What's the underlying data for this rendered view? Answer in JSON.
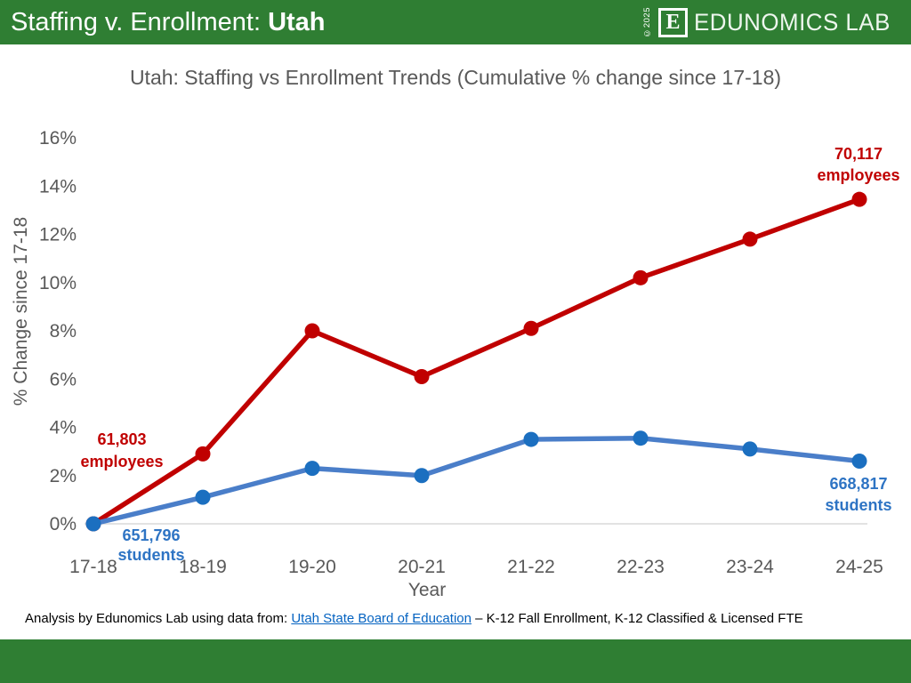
{
  "header": {
    "title_prefix": "Staffing v. Enrollment: ",
    "title_emphasis": "Utah",
    "copyright": "©2025",
    "logo_letter": "E",
    "logo_text": "EDUNOMICS LAB"
  },
  "chart_data": {
    "type": "line",
    "title": "Utah: Staffing vs Enrollment Trends (Cumulative % change since 17-18)",
    "xlabel": "Year",
    "ylabel": "% Change since 17-18",
    "x_labels": [
      "17-18",
      "18-19",
      "19-20",
      "20-21",
      "21-22",
      "22-23",
      "23-24",
      "24-25"
    ],
    "ylim": [
      0,
      16
    ],
    "ytick_step": 2,
    "ytick_suffix": "%",
    "grid": "zero-line only",
    "legend_position": "none",
    "series": [
      {
        "name": "employees",
        "color": "#C00000",
        "marker_color": "#C00000",
        "values": [
          0,
          2.9,
          8.0,
          6.1,
          8.1,
          10.2,
          11.8,
          13.45
        ]
      },
      {
        "name": "students",
        "color": "#4A7EC9",
        "marker_color": "#1B6FC0",
        "values": [
          0,
          1.1,
          2.3,
          2.0,
          3.5,
          3.55,
          3.1,
          2.6
        ]
      }
    ],
    "annotations": [
      {
        "id": "employees-start",
        "lines": [
          "61,803",
          "employees"
        ],
        "color": "#C00000"
      },
      {
        "id": "students-start",
        "lines": [
          "651,796",
          "students"
        ],
        "color": "#2E74C4"
      },
      {
        "id": "employees-end",
        "lines": [
          "70,117",
          "employees"
        ],
        "color": "#C00000"
      },
      {
        "id": "students-end",
        "lines": [
          "668,817",
          "students"
        ],
        "color": "#2E74C4"
      }
    ]
  },
  "footer": {
    "prefix": "Analysis by Edunomics Lab using data from: ",
    "link": "Utah State Board of Education",
    "suffix": " – K-12 Fall Enrollment, K-12 Classified & Licensed FTE"
  },
  "colors": {
    "header_green": "#2F7E33",
    "axis_text": "#595959",
    "gridline": "#D9D9D9",
    "employees_red": "#C00000",
    "students_blue": "#2E74C4",
    "link_blue": "#0563C1"
  }
}
